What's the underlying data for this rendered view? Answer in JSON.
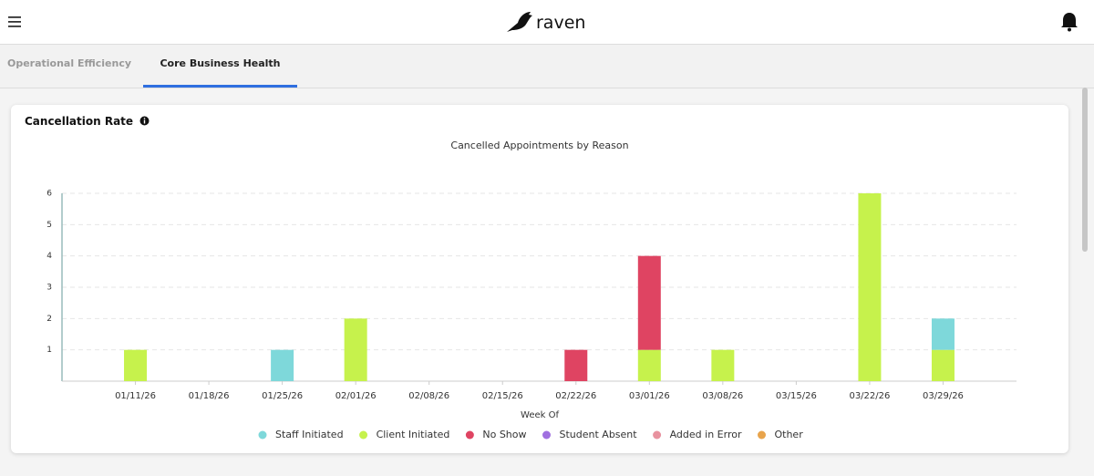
{
  "header": {
    "logo": "raven"
  },
  "tabs": [
    "Operational Efficiency",
    "Core Business Health"
  ],
  "card": {
    "title": "Cancellation Rate"
  },
  "chart_data": {
    "type": "bar",
    "stacked": true,
    "title": "Cancelled Appointments by Reason",
    "x_label": "Week Of",
    "categories": [
      "01/11/26",
      "01/18/26",
      "01/25/26",
      "02/01/26",
      "02/08/26",
      "02/15/26",
      "02/22/26",
      "03/01/26",
      "03/08/26",
      "03/15/26",
      "03/22/26",
      "03/29/26"
    ],
    "series": [
      {
        "name": "Staff Initiated",
        "color": "#7ed8da",
        "values": [
          0,
          0,
          1,
          0,
          0,
          0,
          0,
          0,
          0,
          0,
          0,
          1
        ]
      },
      {
        "name": "Client Initiated",
        "color": "#c6f24c",
        "values": [
          1,
          0,
          0,
          2,
          0,
          0,
          0,
          1,
          1,
          0,
          6,
          1
        ]
      },
      {
        "name": "No Show",
        "color": "#df4462",
        "values": [
          0,
          0,
          0,
          0,
          0,
          0,
          1,
          3,
          0,
          0,
          0,
          0
        ]
      },
      {
        "name": "Student Absent",
        "color": "#a070e0",
        "values": [
          0,
          0,
          0,
          0,
          0,
          0,
          0,
          0,
          0,
          0,
          0,
          0
        ]
      },
      {
        "name": "Added in Error",
        "color": "#e8929f",
        "values": [
          0,
          0,
          0,
          0,
          0,
          0,
          0,
          0,
          0,
          0,
          0,
          0
        ]
      },
      {
        "name": "Other",
        "color": "#e8a44c",
        "values": [
          0,
          0,
          0,
          0,
          0,
          0,
          0,
          0,
          0,
          0,
          0,
          0
        ]
      }
    ],
    "ylim": [
      0,
      6
    ],
    "yticks": [
      1,
      2,
      3,
      4,
      5,
      6
    ],
    "grid": true,
    "legend": "bottom"
  }
}
